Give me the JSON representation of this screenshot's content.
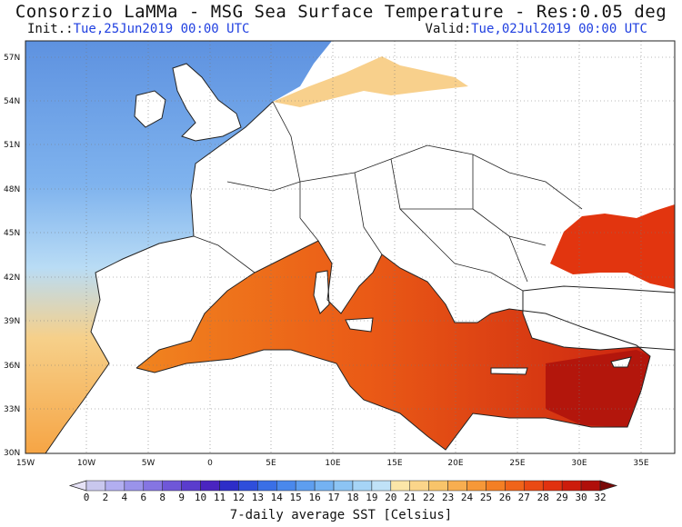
{
  "header": {
    "title": "Consorzio LaMMa - MSG Sea Surface Temperature - Res:0.05 deg",
    "init_label": "Init.:",
    "init_value": "Tue,25Jun2019 00:00 UTC",
    "valid_label": "Valid:",
    "valid_value": "Tue,02Jul2019 00:00 UTC"
  },
  "axes": {
    "lat_ticks": [
      "57N",
      "54N",
      "51N",
      "48N",
      "45N",
      "42N",
      "39N",
      "36N",
      "33N",
      "30N"
    ],
    "lon_ticks": [
      "15W",
      "10W",
      "5W",
      "0",
      "5E",
      "10E",
      "15E",
      "20E",
      "25E",
      "30E",
      "35E"
    ]
  },
  "colorbar": {
    "ticks": [
      "0",
      "2",
      "4",
      "6",
      "8",
      "9",
      "10",
      "11",
      "12",
      "13",
      "14",
      "15",
      "16",
      "17",
      "18",
      "19",
      "20",
      "21",
      "22",
      "23",
      "24",
      "25",
      "26",
      "27",
      "28",
      "29",
      "30",
      "32"
    ],
    "colors": [
      "#c9c7ee",
      "#b2aef0",
      "#9a93ea",
      "#8575e2",
      "#6f57d8",
      "#5a3ccd",
      "#4a24c0",
      "#2d2dc8",
      "#2f4edb",
      "#3a6fe6",
      "#4a88ec",
      "#5e9eef",
      "#74b2f2",
      "#8cc4f4",
      "#a6d4f6",
      "#c0e2f7",
      "#fbe6a8",
      "#fbd58a",
      "#f8c46a",
      "#f8ae50",
      "#f69838",
      "#f47f24",
      "#f0641a",
      "#ea4a14",
      "#e1310f",
      "#cc1c0c",
      "#b00f0a"
    ],
    "label": "7-daily average SST [Celsius]"
  }
}
